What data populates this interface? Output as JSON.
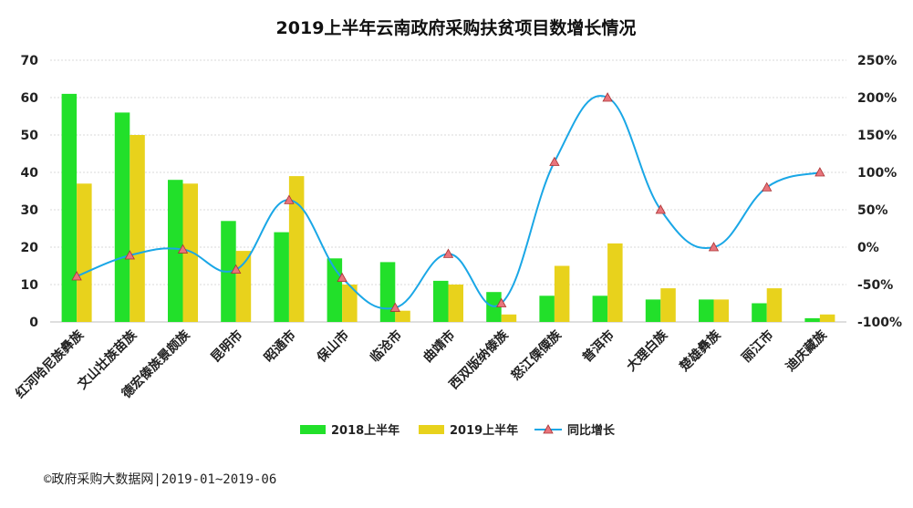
{
  "chart_data": {
    "type": "bar",
    "title": "2019上半年云南政府采购扶贫项目数增长情况",
    "categories": [
      "红河哈尼族彝族",
      "文山壮族苗族",
      "德宏傣族景颇族",
      "昆明市",
      "昭通市",
      "保山市",
      "临沧市",
      "曲靖市",
      "西双版纳傣族",
      "怒江傈僳族",
      "普洱市",
      "大理白族",
      "楚雄彝族",
      "丽江市",
      "迪庆藏族"
    ],
    "series": [
      {
        "name": "2018上半年",
        "type": "bar",
        "axis": "left",
        "color": "#22e02a",
        "values": [
          61,
          56,
          38,
          27,
          24,
          17,
          16,
          11,
          8,
          7,
          7,
          6,
          6,
          5,
          1
        ]
      },
      {
        "name": "2019上半年",
        "type": "bar",
        "axis": "left",
        "color": "#e8d21c",
        "values": [
          37,
          50,
          37,
          19,
          39,
          10,
          3,
          10,
          2,
          15,
          21,
          9,
          6,
          9,
          2
        ]
      },
      {
        "name": "同比增长",
        "type": "line",
        "axis": "right",
        "unit": "%",
        "color": "#1aa7e6",
        "marker_color": "#e8747c",
        "values": [
          -39,
          -11,
          -3,
          -30,
          63,
          -41,
          -81,
          -9,
          -75,
          114,
          200,
          50,
          0,
          80,
          100
        ]
      }
    ],
    "y_left": {
      "ylim": [
        0,
        70
      ],
      "ticks": [
        0,
        10,
        20,
        30,
        40,
        50,
        60,
        70
      ]
    },
    "y_right": {
      "ylim": [
        -100,
        250
      ],
      "ticks": [
        "-100%",
        "-50%",
        "0%",
        "50%",
        "100%",
        "150%",
        "200%",
        "250%"
      ]
    },
    "legend_position": "bottom",
    "grid": true
  },
  "footer": "©政府采购大数据网|2019-01~2019-06"
}
